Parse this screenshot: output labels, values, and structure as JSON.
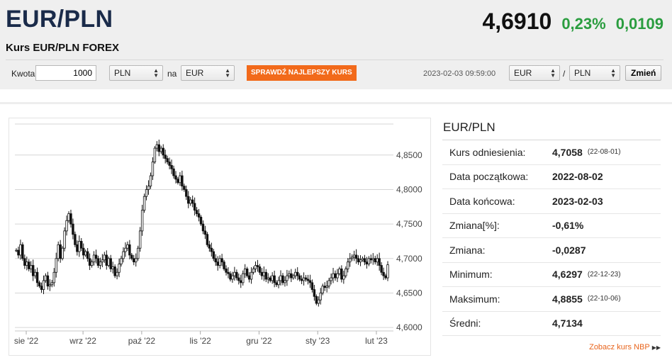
{
  "header": {
    "pair": "EUR/PLN",
    "subtitle": "Kurs EUR/PLN FOREX",
    "rate": "4,6910",
    "change_pct": "0,23%",
    "change_abs": "0,0109",
    "change_color": "#2a9d3f"
  },
  "converter": {
    "amount_label": "Kwota",
    "amount_value": "1000",
    "from_currency": "PLN",
    "to_label": "na",
    "to_currency": "EUR",
    "best_rate_button": "SPRAWDŹ NAJLEPSZY KURS",
    "button_color": "#f26a1b"
  },
  "pair_switch": {
    "timestamp": "2023-02-03 09:59:00",
    "base": "EUR",
    "separator": "/",
    "quote": "PLN",
    "change_button": "Zmień"
  },
  "stats": {
    "title": "EUR/PLN",
    "rows": [
      {
        "label": "Kurs odniesienia:",
        "value": "4,7058",
        "date": "(22-08-01)"
      },
      {
        "label": "Data początkowa:",
        "value": "2022-08-02",
        "date": ""
      },
      {
        "label": "Data końcowa:",
        "value": "2023-02-03",
        "date": ""
      },
      {
        "label": "Zmiana[%]:",
        "value": "-0,61%",
        "date": ""
      },
      {
        "label": "Zmiana:",
        "value": "-0,0287",
        "date": ""
      },
      {
        "label": "Minimum:",
        "value": "4,6297",
        "date": "(22-12-23)"
      },
      {
        "label": "Maksimum:",
        "value": "4,8855",
        "date": "(22-10-06)"
      },
      {
        "label": "Średni:",
        "value": "4,7134",
        "date": ""
      }
    ],
    "nbp_link": "Zobacz kurs NBP"
  },
  "chart_data": {
    "type": "candlestick",
    "y_ticks": [
      "4,8500",
      "4,8000",
      "4,7500",
      "4,7000",
      "4,6500",
      "4,6000"
    ],
    "y_tick_values": [
      4.85,
      4.8,
      4.75,
      4.7,
      4.65,
      4.6
    ],
    "ylim": [
      4.595,
      4.895
    ],
    "x_ticks": [
      "sie '22",
      "wrz '22",
      "paź '22",
      "lis '22",
      "gru '22",
      "sty '23",
      "lut '23"
    ],
    "x_tick_positions": [
      0.03,
      0.18,
      0.335,
      0.49,
      0.645,
      0.8,
      0.955
    ],
    "grid": true,
    "axis_side": "right",
    "close_series": [
      4.712,
      4.705,
      4.72,
      4.7,
      4.69,
      4.695,
      4.685,
      4.69,
      4.675,
      4.68,
      4.665,
      4.66,
      4.655,
      4.668,
      4.675,
      4.66,
      4.662,
      4.665,
      4.68,
      4.7,
      4.72,
      4.7,
      4.715,
      4.74,
      4.755,
      4.765,
      4.75,
      4.735,
      4.72,
      4.71,
      4.725,
      4.715,
      4.705,
      4.71,
      4.7,
      4.69,
      4.695,
      4.705,
      4.7,
      4.69,
      4.695,
      4.698,
      4.705,
      4.69,
      4.7,
      4.685,
      4.688,
      4.675,
      4.68,
      4.692,
      4.7,
      4.71,
      4.715,
      4.72,
      4.705,
      4.7,
      4.695,
      4.7,
      4.715,
      4.74,
      4.77,
      4.79,
      4.8,
      4.805,
      4.82,
      4.84,
      4.86,
      4.865,
      4.855,
      4.86,
      4.85,
      4.845,
      4.84,
      4.835,
      4.83,
      4.82,
      4.815,
      4.81,
      4.82,
      4.805,
      4.8,
      4.79,
      4.78,
      4.785,
      4.78,
      4.77,
      4.765,
      4.76,
      4.75,
      4.74,
      4.735,
      4.72,
      4.715,
      4.71,
      4.7,
      4.695,
      4.69,
      4.7,
      4.695,
      4.685,
      4.68,
      4.678,
      4.67,
      4.675,
      4.68,
      4.672,
      4.668,
      4.665,
      4.678,
      4.685,
      4.675,
      4.67,
      4.68,
      4.685,
      4.69,
      4.688,
      4.68,
      4.675,
      4.68,
      4.67,
      4.672,
      4.668,
      4.675,
      4.665,
      4.662,
      4.668,
      4.675,
      4.665,
      4.668,
      4.675,
      4.678,
      4.672,
      4.675,
      4.68,
      4.675,
      4.67,
      4.668,
      4.672,
      4.67,
      4.668,
      4.665,
      4.655,
      4.645,
      4.635,
      4.64,
      4.65,
      4.66,
      4.658,
      4.66,
      4.668,
      4.672,
      4.678,
      4.672,
      4.678,
      4.685,
      4.67,
      4.675,
      4.685,
      4.695,
      4.7,
      4.702,
      4.705,
      4.7,
      4.695,
      4.698,
      4.7,
      4.695,
      4.692,
      4.7,
      4.698,
      4.7,
      4.695,
      4.7,
      4.69,
      4.68,
      4.675,
      4.672,
      4.691
    ]
  }
}
